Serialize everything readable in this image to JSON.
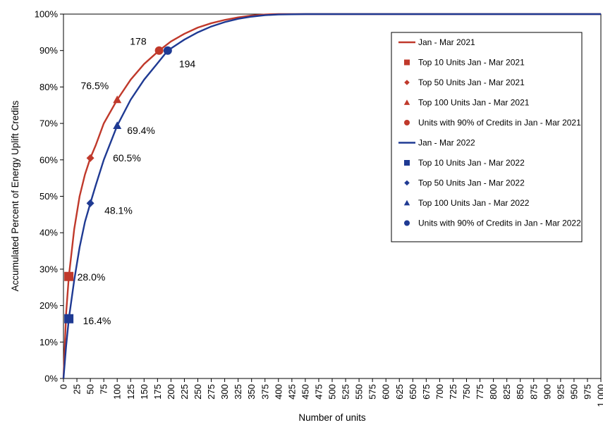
{
  "chart_data": {
    "type": "line",
    "title": "",
    "xlabel": "Number of units",
    "ylabel": "Accumulated Percent of Energy Uplift Credits",
    "xlim": [
      0,
      1000
    ],
    "ylim": [
      0,
      100
    ],
    "x_ticks": [
      "0",
      "25",
      "50",
      "75",
      "100",
      "125",
      "150",
      "175",
      "200",
      "225",
      "250",
      "275",
      "300",
      "325",
      "350",
      "375",
      "400",
      "425",
      "450",
      "475",
      "500",
      "525",
      "550",
      "575",
      "600",
      "625",
      "650",
      "675",
      "700",
      "725",
      "750",
      "775",
      "800",
      "825",
      "850",
      "875",
      "900",
      "925",
      "950",
      "975",
      "1,000"
    ],
    "y_ticks": [
      "0%",
      "10%",
      "20%",
      "30%",
      "40%",
      "50%",
      "60%",
      "70%",
      "80%",
      "90%",
      "100%"
    ],
    "grid": false,
    "legend_position": "top-right",
    "colors": {
      "s2021": "#c0392b",
      "s2022": "#1f3a93"
    },
    "series": [
      {
        "name": "Jan - Mar 2021",
        "color": "#c0392b",
        "x": [
          0,
          5,
          10,
          20,
          30,
          40,
          50,
          60,
          75,
          100,
          125,
          150,
          178,
          200,
          225,
          250,
          275,
          300,
          325,
          350,
          375,
          400,
          450,
          500,
          600,
          700,
          800,
          900,
          1000
        ],
        "y": [
          0,
          18,
          28,
          41,
          50,
          56,
          60.5,
          64,
          70,
          76.5,
          82,
          86.3,
          90,
          92.5,
          94.6,
          96.3,
          97.5,
          98.4,
          99.1,
          99.6,
          99.9,
          100,
          100,
          100,
          100,
          100,
          100,
          100,
          100
        ]
      },
      {
        "name": "Jan - Mar 2022",
        "color": "#1f3a93",
        "x": [
          0,
          5,
          10,
          20,
          30,
          40,
          50,
          60,
          75,
          100,
          125,
          150,
          175,
          194,
          225,
          250,
          275,
          300,
          325,
          350,
          375,
          400,
          450,
          500,
          600,
          700,
          800,
          900,
          1000
        ],
        "y": [
          0,
          9,
          16.4,
          27,
          36,
          43,
          48.1,
          53,
          60,
          69.4,
          76.5,
          82,
          86.5,
          90,
          93,
          95,
          96.6,
          97.8,
          98.7,
          99.3,
          99.7,
          99.9,
          100,
          100,
          100,
          100,
          100,
          100,
          100
        ]
      }
    ],
    "markers": [
      {
        "name": "Top 10 Units Jan - Mar 2021",
        "shape": "square",
        "color": "#c0392b",
        "x": 10,
        "y": 28.0,
        "label": "28.0%"
      },
      {
        "name": "Top 50 Units Jan - Mar 2021",
        "shape": "diamond",
        "color": "#c0392b",
        "x": 50,
        "y": 60.5,
        "label": ""
      },
      {
        "name": "Top 100 Units Jan - Mar 2021",
        "shape": "triangle",
        "color": "#c0392b",
        "x": 100,
        "y": 76.5,
        "label": "76.5%"
      },
      {
        "name": "Units with 90% of Credits in Jan - Mar 2021",
        "shape": "circle",
        "color": "#c0392b",
        "x": 178,
        "y": 90,
        "label": "178"
      },
      {
        "name": "Top 10 Units Jan - Mar 2022",
        "shape": "square",
        "color": "#1f3a93",
        "x": 10,
        "y": 16.4,
        "label": "16.4%"
      },
      {
        "name": "Top 50 Units Jan - Mar 2022",
        "shape": "diamond",
        "color": "#1f3a93",
        "x": 50,
        "y": 48.1,
        "label": "48.1%"
      },
      {
        "name": "Top 100 Units Jan - Mar 2022",
        "shape": "triangle",
        "color": "#1f3a93",
        "x": 100,
        "y": 69.4,
        "label": "69.4%"
      },
      {
        "name": "Units with 90% of Credits in Jan - Mar 2022",
        "shape": "circle",
        "color": "#1f3a93",
        "x": 194,
        "y": 90,
        "label": "194"
      }
    ],
    "annotations": [
      {
        "text": "60.5%"
      }
    ],
    "legend": [
      {
        "label": "Jan - Mar 2021",
        "type": "line",
        "color": "#c0392b"
      },
      {
        "label": "Top 10 Units Jan - Mar 2021",
        "type": "square",
        "color": "#c0392b"
      },
      {
        "label": "Top 50 Units Jan - Mar 2021",
        "type": "diamond",
        "color": "#c0392b"
      },
      {
        "label": "Top 100 Units Jan - Mar 2021",
        "type": "triangle",
        "color": "#c0392b"
      },
      {
        "label": "Units with 90% of Credits in Jan - Mar 2021",
        "type": "circle",
        "color": "#c0392b"
      },
      {
        "label": "Jan - Mar 2022",
        "type": "line",
        "color": "#1f3a93"
      },
      {
        "label": "Top 10 Units Jan - Mar 2022",
        "type": "square",
        "color": "#1f3a93"
      },
      {
        "label": "Top 50 Units Jan - Mar 2022",
        "type": "diamond",
        "color": "#1f3a93"
      },
      {
        "label": "Top 100 Units Jan - Mar 2022",
        "type": "triangle",
        "color": "#1f3a93"
      },
      {
        "label": "Units with 90% of Credits in Jan - Mar 2022",
        "type": "circle",
        "color": "#1f3a93"
      }
    ]
  }
}
